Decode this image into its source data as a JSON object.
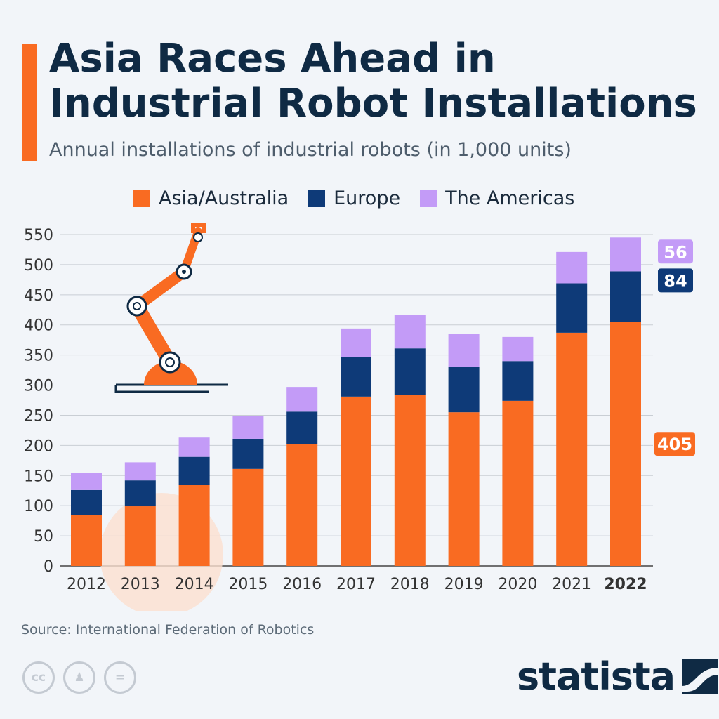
{
  "header": {
    "title": "Asia Races Ahead in Industrial Robot Installations",
    "subtitle": "Annual installations of industrial robots (in 1,000 units)"
  },
  "footer": {
    "source": "Source: International Federation of Robotics",
    "logo": "statista",
    "cc_icons": [
      "cc-icon",
      "by-icon",
      "nd-icon"
    ]
  },
  "chart_data": {
    "type": "bar",
    "stacked": true,
    "title": "Asia Races Ahead in Industrial Robot Installations",
    "subtitle": "Annual installations of industrial robots (in 1,000 units)",
    "categories": [
      "2012",
      "2013",
      "2014",
      "2015",
      "2016",
      "2017",
      "2018",
      "2019",
      "2020",
      "2021",
      "2022"
    ],
    "highlight_category": "2022",
    "series": [
      {
        "name": "Asia/Australia",
        "color": "#f96b22",
        "values": [
          85,
          99,
          134,
          161,
          202,
          281,
          284,
          255,
          274,
          387,
          405
        ]
      },
      {
        "name": "Europe",
        "color": "#0e3a78",
        "values": [
          41,
          43,
          47,
          50,
          54,
          66,
          77,
          75,
          66,
          82,
          84
        ]
      },
      {
        "name": "The Americas",
        "color": "#c39bf7",
        "values": [
          28,
          30,
          32,
          38,
          41,
          47,
          55,
          55,
          40,
          52,
          56
        ]
      }
    ],
    "data_labels": [
      {
        "series": "Asia/Australia",
        "category": "2022",
        "text": "405"
      },
      {
        "series": "Europe",
        "category": "2022",
        "text": "84"
      },
      {
        "series": "The Americas",
        "category": "2022",
        "text": "56"
      }
    ],
    "ylim": [
      0,
      550
    ],
    "yticks": [
      0,
      50,
      100,
      150,
      200,
      250,
      300,
      350,
      400,
      450,
      500,
      550
    ],
    "grid": true,
    "legend_position": "top"
  }
}
